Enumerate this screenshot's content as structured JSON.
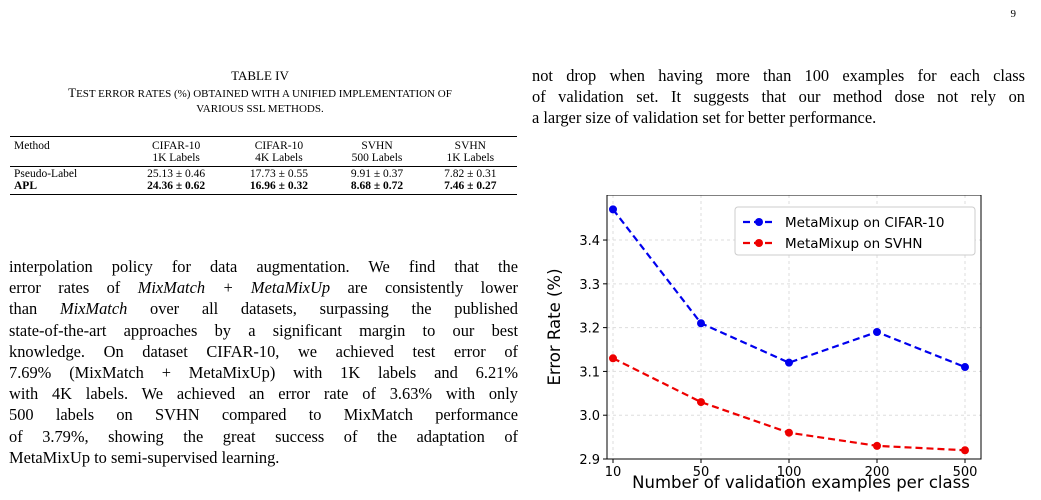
{
  "page_number": "9",
  "table": {
    "title": "TABLE IV",
    "caption_parts": {
      "a": "T",
      "b": "EST ERROR RATES (%) OBTAINED WITH A UNIFIED IMPLEMENTATION OF",
      "c": "VARIOUS SSL METHODS."
    },
    "header_row1": [
      "Method",
      "CIFAR-10",
      "CIFAR-10",
      "SVHN",
      "SVHN"
    ],
    "header_row2": [
      "",
      "1K Labels",
      "4K Labels",
      "500 Labels",
      "1K Labels"
    ],
    "rows": [
      [
        "Pseudo-Label",
        "25.13 ± 0.46",
        "17.73 ± 0.55",
        "9.91 ± 0.37",
        "7.82 ± 0.31"
      ],
      [
        "APL",
        "24.36 ± 0.62",
        "16.96 ± 0.32",
        "8.68 ± 0.72",
        "7.46 ± 0.27"
      ]
    ]
  },
  "left_paragraph": {
    "lines": [
      "interpolation policy for data augmentation. We find that the",
      "error rates of ",
      "than ",
      "state-of-the-art approaches by a significant margin to our best",
      "knowledge. On dataset CIFAR-10, we achieved test error of",
      "7.69% (MixMatch + MetaMixUp) with 1K labels and 6.21%",
      "with 4K labels. We achieved an error rate of 3.63% with only",
      "500 labels on SVHN compared to MixMatch performance",
      "of 3.79%, showing the great success of the adaptation of",
      "MetaMixUp to semi-supervised learning."
    ],
    "italic_1": "MixMatch + MetaMixUp",
    "line2_tail": " are consistently lower",
    "italic_2": "MixMatch",
    "line3_tail": " over all datasets, surpassing the published"
  },
  "right_paragraph": {
    "lines": [
      "not drop when having more than 100 examples for each class",
      "of validation set. It suggests that our method dose not rely on",
      "a larger size of validation set for better performance."
    ]
  },
  "chart_data": {
    "type": "line",
    "categories": [
      "10",
      "50",
      "100",
      "200",
      "500"
    ],
    "series": [
      {
        "name": "MetaMixup on CIFAR-10",
        "color": "#0000ee",
        "values": [
          3.47,
          3.21,
          3.12,
          3.19,
          3.11
        ]
      },
      {
        "name": "MetaMixup on SVHN",
        "color": "#ee0000",
        "values": [
          3.13,
          3.03,
          2.96,
          2.93,
          2.92
        ]
      }
    ],
    "ylim": [
      2.9,
      3.48
    ],
    "yticks": [
      "2.9",
      "3.0",
      "3.1",
      "3.2",
      "3.3",
      "3.4"
    ],
    "ytick_values": [
      2.9,
      3.0,
      3.1,
      3.2,
      3.3,
      3.4
    ],
    "xlabel": "Number of validation examples per class",
    "ylabel": "Error Rate (%)",
    "grid": true,
    "legend_position": "top-right",
    "line_style": "dashed"
  }
}
